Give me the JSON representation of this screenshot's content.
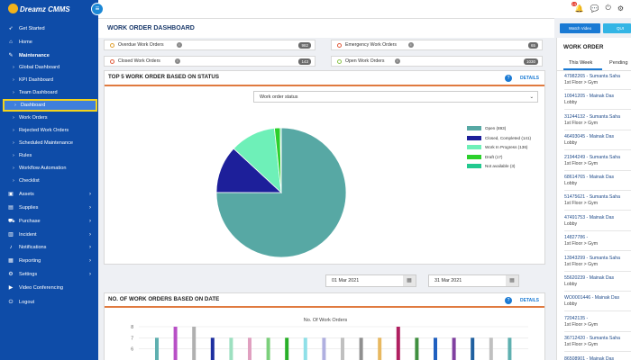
{
  "app": {
    "logo_text": "Dreamz CMMS"
  },
  "sidebar": {
    "items": [
      {
        "label": "Get Started",
        "icon": "rocket-icon",
        "sub": false
      },
      {
        "label": "Home",
        "icon": "home-icon",
        "sub": false
      },
      {
        "label": "Maintenance",
        "icon": "wrench-icon",
        "sub": false,
        "section": true
      },
      {
        "label": "Global Dashboard",
        "sub": true
      },
      {
        "label": "KPI Dashboard",
        "sub": true
      },
      {
        "label": "Team Dashboard",
        "sub": true
      },
      {
        "label": "Dashboard",
        "sub": true,
        "active": true
      },
      {
        "label": "Work Orders",
        "sub": true
      },
      {
        "label": "Rejected Work Orders",
        "sub": true
      },
      {
        "label": "Scheduled Maintenance",
        "sub": true
      },
      {
        "label": "Rules",
        "sub": true
      },
      {
        "label": "Workflow Automation",
        "sub": true
      },
      {
        "label": "Checklist",
        "sub": true
      },
      {
        "label": "Assets",
        "icon": "box-icon",
        "sub": false,
        "chevron": true
      },
      {
        "label": "Supplies",
        "icon": "supplies-icon",
        "sub": false,
        "chevron": true
      },
      {
        "label": "Purchase",
        "icon": "cart-icon",
        "sub": false,
        "chevron": true
      },
      {
        "label": "Incident",
        "icon": "incident-icon",
        "sub": false,
        "chevron": true
      },
      {
        "label": "Notifications",
        "icon": "bell-icon",
        "sub": false,
        "chevron": true
      },
      {
        "label": "Reporting",
        "icon": "report-icon",
        "sub": false,
        "chevron": true
      },
      {
        "label": "Settings",
        "icon": "gear-icon",
        "sub": false,
        "chevron": true
      },
      {
        "label": "Video Conferencing",
        "icon": "video-icon",
        "sub": false
      },
      {
        "label": "Logout",
        "icon": "logout-icon",
        "sub": false
      }
    ]
  },
  "topbar": {
    "notification_count": "13"
  },
  "header": {
    "title": "WORK ORDER DASHBOARD",
    "watch_video": "Watch Video",
    "quick": "QUI"
  },
  "stats": {
    "overdue": {
      "label": "Overdue Work Orders",
      "value": "982",
      "color": "#e0a030"
    },
    "emergency": {
      "label": "Emergency Work Orders",
      "value": "65",
      "color": "#e05a3a"
    },
    "closed": {
      "label": "Closed Work Orders",
      "value": "143",
      "color": "#e05a3a"
    },
    "open": {
      "label": "Open Work Orders",
      "value": "1030",
      "color": "#8bc34a"
    }
  },
  "status_panel": {
    "title": "TOP 5 WORK ORDER BASED ON STATUS",
    "details": "DETAILS",
    "select_value": "Work order status"
  },
  "chart_data": [
    {
      "type": "pie",
      "title": "",
      "labels": [
        "Open",
        "Closed, Completed",
        "Work In Progress",
        "Draft",
        "Not available"
      ],
      "values": [
        893,
        141,
        136,
        17,
        3
      ],
      "legend": [
        "Open (893)",
        "Closed, Completed (141)",
        "Work In Progress (136)",
        "Draft (17)",
        "Not available (3)"
      ],
      "colors": [
        "#57a8a4",
        "#1d1f9a",
        "#6ef0b8",
        "#2bd02b",
        "#22c98f"
      ],
      "legend_position": "right"
    },
    {
      "type": "bar",
      "title": "No. Of Work Orders",
      "categories": [
        "d1",
        "d2",
        "d3",
        "d4",
        "d5",
        "d6",
        "d7",
        "d8",
        "d9",
        "d10",
        "d11",
        "d12",
        "d13",
        "d14",
        "d15",
        "d16",
        "d17",
        "d18",
        "d19",
        "d20"
      ],
      "values": [
        7,
        8,
        8,
        7,
        7,
        7,
        7,
        7,
        7,
        7,
        7,
        7,
        7,
        8,
        7,
        7,
        7,
        7,
        7,
        7
      ],
      "colors": [
        "#5fb0b0",
        "#b84fc6",
        "#b0b0b0",
        "#1d2fa0",
        "#9de0c0",
        "#e0a0c0",
        "#7bd07b",
        "#28b028",
        "#8fe0e8",
        "#b0b0e0",
        "#c0c0c0",
        "#909090",
        "#e8b860",
        "#b02060",
        "#409040",
        "#2060c0",
        "#8040a0",
        "#2060a0",
        "#c0c0c0",
        "#5fb0b0"
      ],
      "y_ticks": [
        "8",
        "7",
        "6"
      ],
      "ylim": [
        5,
        8
      ]
    }
  ],
  "date_panel": {
    "from": "01 Mar 2021",
    "to": "31 Mar 2021",
    "title": "NO. OF WORK ORDERS BASED ON DATE",
    "details": "DETAILS",
    "chart_title": "No. Of Work Orders"
  },
  "right_panel": {
    "title": "WORK ORDER",
    "tab_week": "This Week",
    "tab_pending": "Pending",
    "items": [
      {
        "title": "47982265 - Sumanta Saha",
        "loc": "1st Floor > Gym"
      },
      {
        "title": "10941205 - Mainak Das",
        "loc": "Lobby"
      },
      {
        "title": "31244132 - Sumanta Saha",
        "loc": "1st Floor > Gym"
      },
      {
        "title": "46493045 - Mainak Das",
        "loc": "Lobby"
      },
      {
        "title": "21944249 - Sumanta Saha",
        "loc": "1st Floor > Gym"
      },
      {
        "title": "68614765 - Mainak Das",
        "loc": "Lobby"
      },
      {
        "title": "51475621 - Sumanta Saha",
        "loc": "1st Floor > Gym"
      },
      {
        "title": "47491753 - Mainak Das",
        "loc": "Lobby"
      },
      {
        "title": "14827786 -",
        "loc": "1st Floor > Gym"
      },
      {
        "title": "13943299 - Sumanta Saha",
        "loc": "1st Floor > Gym"
      },
      {
        "title": "55620239 - Mainak Das",
        "loc": "Lobby"
      },
      {
        "title": "WO0001446 - Mainak Das",
        "loc": "Lobby"
      },
      {
        "title": "72042135 -",
        "loc": "1st Floor > Gym"
      },
      {
        "title": "36712420 - Sumanta Saha",
        "loc": "1st Floor > Gym"
      },
      {
        "title": "86508901 - Mainak Das",
        "loc": "Lobby"
      }
    ]
  }
}
